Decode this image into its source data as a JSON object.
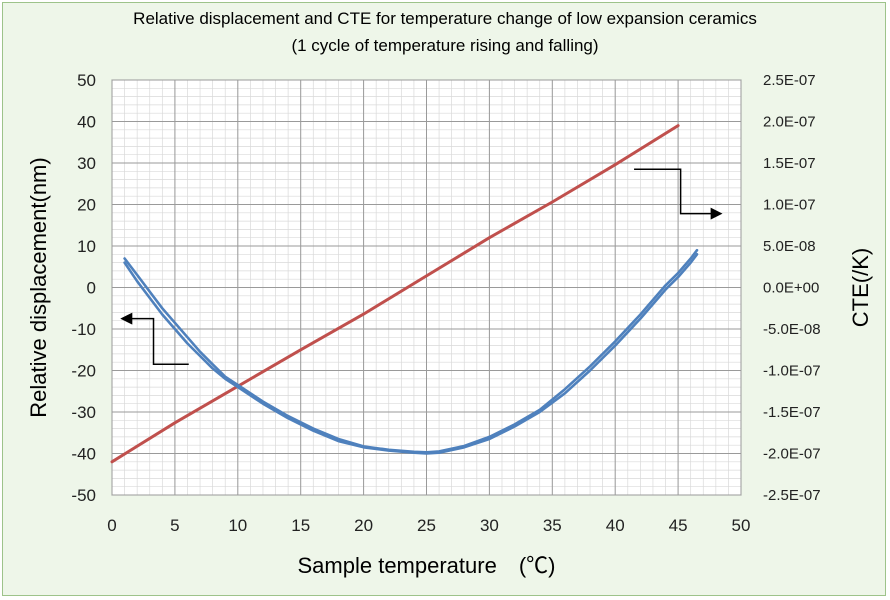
{
  "chart_data": {
    "type": "line",
    "title": "Relative displacement and CTE for temperature change of low expansion ceramics",
    "subtitle": "(1 cycle of temperature rising and falling)",
    "xlabel": "Sample temperature　(℃)",
    "ylabel": "Relative displacement(nm)",
    "y2label": "CTE(/K)",
    "xlim": [
      0,
      50
    ],
    "ylim": [
      -50,
      50
    ],
    "y2lim": [
      -2.5e-07,
      2.5e-07
    ],
    "x_ticks": [
      "0",
      "5",
      "10",
      "15",
      "20",
      "25",
      "30",
      "35",
      "40",
      "45",
      "50"
    ],
    "y_ticks": [
      "50",
      "40",
      "30",
      "20",
      "10",
      "0",
      "-10",
      "-20",
      "-30",
      "-40",
      "-50"
    ],
    "y2_ticks": [
      "2.5E-07",
      "2.0E-07",
      "1.5E-07",
      "1.0E-07",
      "5.0E-08",
      "0.0E+00",
      "-5.0E-08",
      "-1.0E-07",
      "-1.5E-07",
      "-2.0E-07",
      "-2.5E-07"
    ],
    "grid": true,
    "minor_grid": true,
    "colors": {
      "displacement": "#4f81bd",
      "cte": "#c0504d",
      "plot_background": "#ffffff",
      "chart_background": "#eef6e9",
      "border": "#9dc38a"
    },
    "series": [
      {
        "axis": "right",
        "x": [
          0,
          5,
          10,
          15,
          20,
          25,
          30,
          35,
          40,
          45
        ],
        "y": [
          -2.1e-07,
          -1.63e-07,
          -1.19e-07,
          -7.5e-08,
          -3.2e-08,
          1.4e-08,
          6e-08,
          1.03e-07,
          1.48e-07,
          1.95e-07
        ]
      },
      {
        "axis": "left",
        "x": [
          1,
          2,
          3,
          4,
          5,
          6,
          7,
          8,
          9,
          10,
          12,
          14,
          16,
          18,
          20,
          22,
          24,
          25,
          26,
          28,
          30,
          32,
          34,
          36,
          38,
          40,
          42,
          44,
          45,
          46,
          46.5
        ],
        "y": [
          6,
          1.5,
          -2.5,
          -6.5,
          -10,
          -13.5,
          -16.5,
          -19.5,
          -22,
          -24,
          -28,
          -31.5,
          -34.5,
          -37,
          -38.5,
          -39.3,
          -39.8,
          -40,
          -39.8,
          -38.5,
          -36.5,
          -33.5,
          -30,
          -25.5,
          -20,
          -14,
          -7.5,
          -0.5,
          2.5,
          6,
          8
        ]
      },
      {
        "axis": "left",
        "x": [
          1,
          2,
          3,
          4,
          5,
          6,
          7,
          8,
          9,
          10,
          12,
          14,
          16,
          18,
          20,
          22,
          24,
          25,
          26,
          28,
          30,
          32,
          34,
          36,
          38,
          40,
          42,
          44,
          45,
          46,
          46.5
        ],
        "y": [
          7,
          3,
          -1,
          -5,
          -8.5,
          -12,
          -15.5,
          -18.5,
          -21.5,
          -23.5,
          -27.5,
          -31,
          -34,
          -36.5,
          -38.3,
          -39.1,
          -39.6,
          -39.7,
          -39.5,
          -38.2,
          -36,
          -33,
          -29.5,
          -24.5,
          -19,
          -13,
          -6.5,
          0.5,
          3.5,
          7,
          9
        ]
      }
    ],
    "annotations": [
      {
        "text": "arrow pointing left to left axis",
        "series": "displacement"
      },
      {
        "text": "arrow pointing right to right axis",
        "series": "cte"
      }
    ]
  }
}
